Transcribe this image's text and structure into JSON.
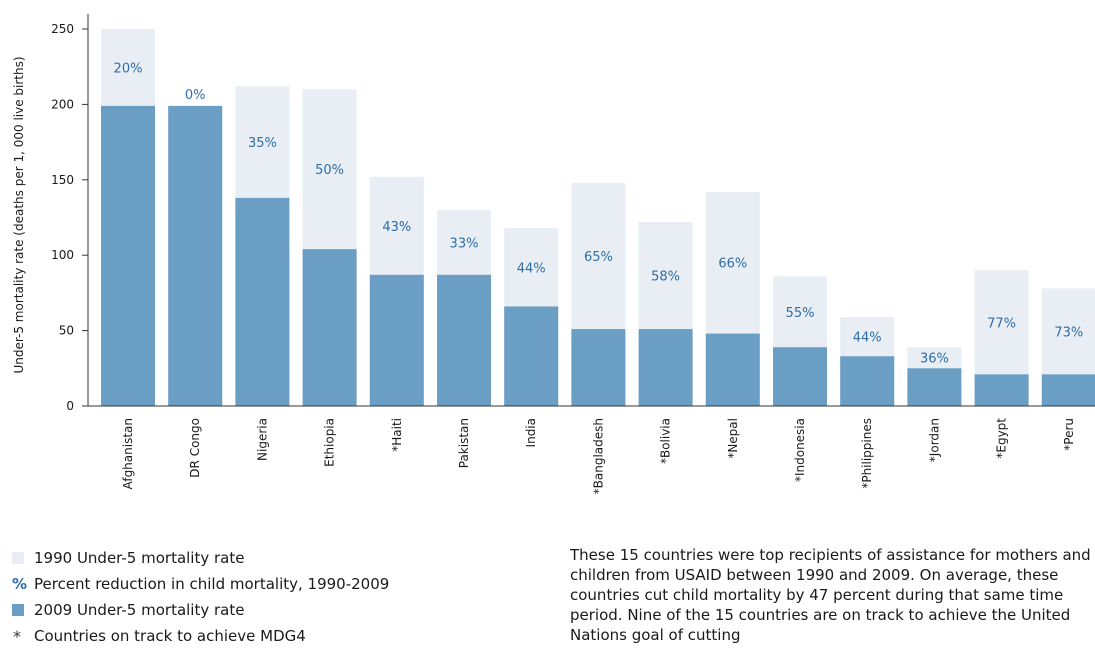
{
  "chart_data": {
    "type": "bar",
    "ylabel": "Under-5 mortality rate (deaths per 1, 000 live births)",
    "ylim": [
      0,
      260
    ],
    "yticks": [
      0,
      50,
      100,
      150,
      200,
      250
    ],
    "categories": [
      "Afghanistan",
      "DR Congo",
      "Nigeria",
      "Ethiopia",
      "*Haiti",
      "Pakistan",
      "India",
      "*Bangladesh",
      "*Bolivia",
      "*Nepal",
      "*Indonesia",
      "*Philippines",
      "*Jordan",
      "*Egypt",
      "*Peru"
    ],
    "series": [
      {
        "name": "1990 Under-5 mortality rate",
        "values": [
          250,
          199,
          212,
          210,
          152,
          130,
          118,
          148,
          122,
          142,
          86,
          59,
          39,
          90,
          78
        ]
      },
      {
        "name": "2009 Under-5 mortality rate",
        "values": [
          199,
          199,
          138,
          104,
          87,
          87,
          66,
          51,
          51,
          48,
          39,
          33,
          25,
          21,
          21
        ]
      }
    ],
    "data_labels": [
      "20%",
      "0%",
      "35%",
      "50%",
      "43%",
      "33%",
      "44%",
      "65%",
      "58%",
      "66%",
      "55%",
      "44%",
      "36%",
      "77%",
      "73%"
    ],
    "colors": {
      "1990": "#e8eef4",
      "2009": "#6a9ec4",
      "label": "#2f6ea6",
      "axis": "#333333"
    },
    "grid": false,
    "legend_position": "bottom-left"
  },
  "legend": {
    "items": [
      {
        "marker": "swatch-1990",
        "text": "1990 Under-5 mortality rate"
      },
      {
        "marker": "%",
        "text": "Percent reduction in child mortality, 1990-2009"
      },
      {
        "marker": "swatch-2009",
        "text": "2009 Under-5 mortality rate"
      },
      {
        "marker": "*",
        "text": "Countries on track to achieve MDG4"
      }
    ]
  },
  "note": "These 15 countries were top recipients of assistance for mothers and children from USAID between 1990 and 2009. On average, these countries cut child mortality by 47 percent during that same time period. Nine of the 15 countries are on track to achieve the United Nations goal of cutting"
}
